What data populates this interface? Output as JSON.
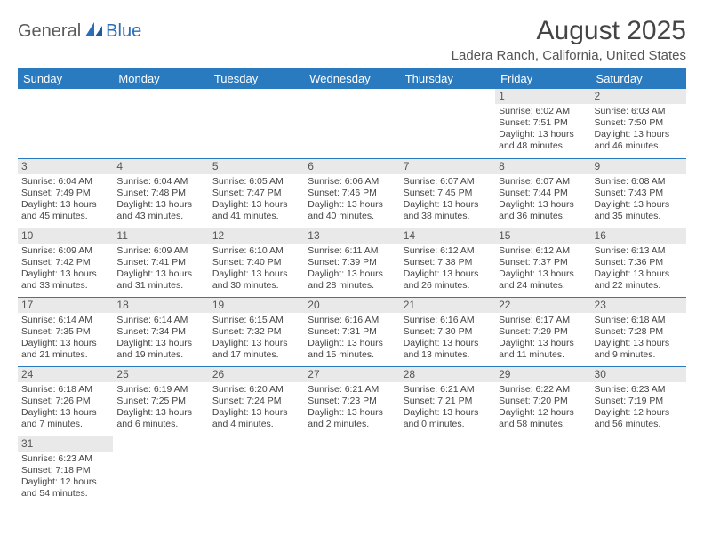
{
  "logo": {
    "part1": "General",
    "part2": "Blue"
  },
  "title": "August 2025",
  "location": "Ladera Ranch, California, United States",
  "colors": {
    "header_bg": "#2a7ac0",
    "header_text": "#ffffff",
    "daynum_bg": "#e9e9e9",
    "border": "#2a7ac0",
    "logo_gray": "#5a5a5a",
    "logo_blue": "#2a6db8"
  },
  "weekdays": [
    "Sunday",
    "Monday",
    "Tuesday",
    "Wednesday",
    "Thursday",
    "Friday",
    "Saturday"
  ],
  "weeks": [
    [
      null,
      null,
      null,
      null,
      null,
      {
        "d": "1",
        "sr": "Sunrise: 6:02 AM",
        "ss": "Sunset: 7:51 PM",
        "dl": "Daylight: 13 hours and 48 minutes."
      },
      {
        "d": "2",
        "sr": "Sunrise: 6:03 AM",
        "ss": "Sunset: 7:50 PM",
        "dl": "Daylight: 13 hours and 46 minutes."
      }
    ],
    [
      {
        "d": "3",
        "sr": "Sunrise: 6:04 AM",
        "ss": "Sunset: 7:49 PM",
        "dl": "Daylight: 13 hours and 45 minutes."
      },
      {
        "d": "4",
        "sr": "Sunrise: 6:04 AM",
        "ss": "Sunset: 7:48 PM",
        "dl": "Daylight: 13 hours and 43 minutes."
      },
      {
        "d": "5",
        "sr": "Sunrise: 6:05 AM",
        "ss": "Sunset: 7:47 PM",
        "dl": "Daylight: 13 hours and 41 minutes."
      },
      {
        "d": "6",
        "sr": "Sunrise: 6:06 AM",
        "ss": "Sunset: 7:46 PM",
        "dl": "Daylight: 13 hours and 40 minutes."
      },
      {
        "d": "7",
        "sr": "Sunrise: 6:07 AM",
        "ss": "Sunset: 7:45 PM",
        "dl": "Daylight: 13 hours and 38 minutes."
      },
      {
        "d": "8",
        "sr": "Sunrise: 6:07 AM",
        "ss": "Sunset: 7:44 PM",
        "dl": "Daylight: 13 hours and 36 minutes."
      },
      {
        "d": "9",
        "sr": "Sunrise: 6:08 AM",
        "ss": "Sunset: 7:43 PM",
        "dl": "Daylight: 13 hours and 35 minutes."
      }
    ],
    [
      {
        "d": "10",
        "sr": "Sunrise: 6:09 AM",
        "ss": "Sunset: 7:42 PM",
        "dl": "Daylight: 13 hours and 33 minutes."
      },
      {
        "d": "11",
        "sr": "Sunrise: 6:09 AM",
        "ss": "Sunset: 7:41 PM",
        "dl": "Daylight: 13 hours and 31 minutes."
      },
      {
        "d": "12",
        "sr": "Sunrise: 6:10 AM",
        "ss": "Sunset: 7:40 PM",
        "dl": "Daylight: 13 hours and 30 minutes."
      },
      {
        "d": "13",
        "sr": "Sunrise: 6:11 AM",
        "ss": "Sunset: 7:39 PM",
        "dl": "Daylight: 13 hours and 28 minutes."
      },
      {
        "d": "14",
        "sr": "Sunrise: 6:12 AM",
        "ss": "Sunset: 7:38 PM",
        "dl": "Daylight: 13 hours and 26 minutes."
      },
      {
        "d": "15",
        "sr": "Sunrise: 6:12 AM",
        "ss": "Sunset: 7:37 PM",
        "dl": "Daylight: 13 hours and 24 minutes."
      },
      {
        "d": "16",
        "sr": "Sunrise: 6:13 AM",
        "ss": "Sunset: 7:36 PM",
        "dl": "Daylight: 13 hours and 22 minutes."
      }
    ],
    [
      {
        "d": "17",
        "sr": "Sunrise: 6:14 AM",
        "ss": "Sunset: 7:35 PM",
        "dl": "Daylight: 13 hours and 21 minutes."
      },
      {
        "d": "18",
        "sr": "Sunrise: 6:14 AM",
        "ss": "Sunset: 7:34 PM",
        "dl": "Daylight: 13 hours and 19 minutes."
      },
      {
        "d": "19",
        "sr": "Sunrise: 6:15 AM",
        "ss": "Sunset: 7:32 PM",
        "dl": "Daylight: 13 hours and 17 minutes."
      },
      {
        "d": "20",
        "sr": "Sunrise: 6:16 AM",
        "ss": "Sunset: 7:31 PM",
        "dl": "Daylight: 13 hours and 15 minutes."
      },
      {
        "d": "21",
        "sr": "Sunrise: 6:16 AM",
        "ss": "Sunset: 7:30 PM",
        "dl": "Daylight: 13 hours and 13 minutes."
      },
      {
        "d": "22",
        "sr": "Sunrise: 6:17 AM",
        "ss": "Sunset: 7:29 PM",
        "dl": "Daylight: 13 hours and 11 minutes."
      },
      {
        "d": "23",
        "sr": "Sunrise: 6:18 AM",
        "ss": "Sunset: 7:28 PM",
        "dl": "Daylight: 13 hours and 9 minutes."
      }
    ],
    [
      {
        "d": "24",
        "sr": "Sunrise: 6:18 AM",
        "ss": "Sunset: 7:26 PM",
        "dl": "Daylight: 13 hours and 7 minutes."
      },
      {
        "d": "25",
        "sr": "Sunrise: 6:19 AM",
        "ss": "Sunset: 7:25 PM",
        "dl": "Daylight: 13 hours and 6 minutes."
      },
      {
        "d": "26",
        "sr": "Sunrise: 6:20 AM",
        "ss": "Sunset: 7:24 PM",
        "dl": "Daylight: 13 hours and 4 minutes."
      },
      {
        "d": "27",
        "sr": "Sunrise: 6:21 AM",
        "ss": "Sunset: 7:23 PM",
        "dl": "Daylight: 13 hours and 2 minutes."
      },
      {
        "d": "28",
        "sr": "Sunrise: 6:21 AM",
        "ss": "Sunset: 7:21 PM",
        "dl": "Daylight: 13 hours and 0 minutes."
      },
      {
        "d": "29",
        "sr": "Sunrise: 6:22 AM",
        "ss": "Sunset: 7:20 PM",
        "dl": "Daylight: 12 hours and 58 minutes."
      },
      {
        "d": "30",
        "sr": "Sunrise: 6:23 AM",
        "ss": "Sunset: 7:19 PM",
        "dl": "Daylight: 12 hours and 56 minutes."
      }
    ],
    [
      {
        "d": "31",
        "sr": "Sunrise: 6:23 AM",
        "ss": "Sunset: 7:18 PM",
        "dl": "Daylight: 12 hours and 54 minutes."
      },
      null,
      null,
      null,
      null,
      null,
      null
    ]
  ]
}
